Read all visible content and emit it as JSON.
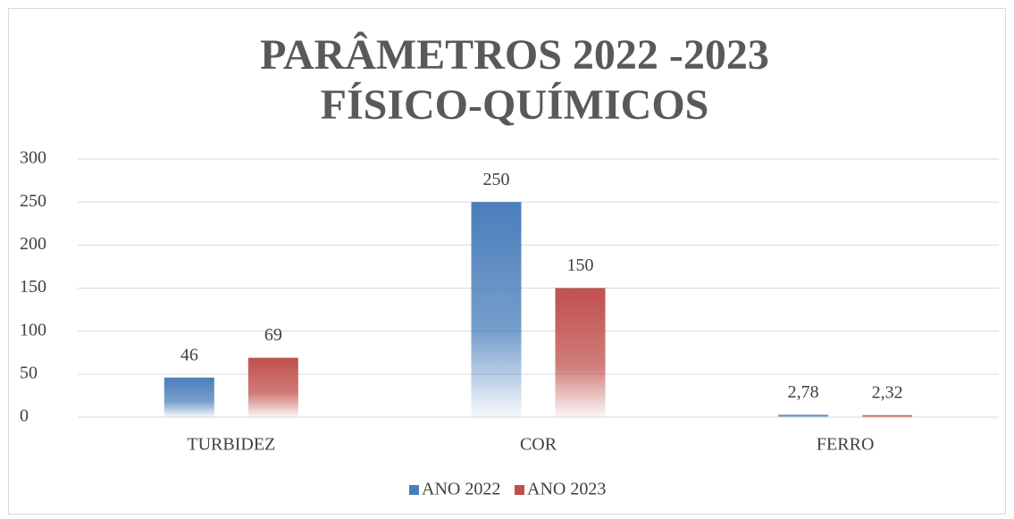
{
  "chart_data": {
    "type": "bar",
    "title": [
      "PARÂMETROS 2022 -2023",
      "FÍSICO-QUÍMICOS"
    ],
    "categories": [
      "TURBIDEZ",
      "COR",
      "FERRO"
    ],
    "series": [
      {
        "name": "ANO 2022",
        "color": "#4a7ebb",
        "values": [
          46,
          250,
          2.78
        ],
        "value_labels": [
          "46",
          "250",
          "2,78"
        ]
      },
      {
        "name": "ANO 2023",
        "color": "#c0504d",
        "values": [
          69,
          150,
          2.32
        ],
        "value_labels": [
          "69",
          "150",
          "2,32"
        ]
      }
    ],
    "ylim": [
      0,
      300
    ],
    "yticks": [
      0,
      50,
      100,
      150,
      200,
      250,
      300
    ],
    "grid": true,
    "legend": "bottom"
  }
}
